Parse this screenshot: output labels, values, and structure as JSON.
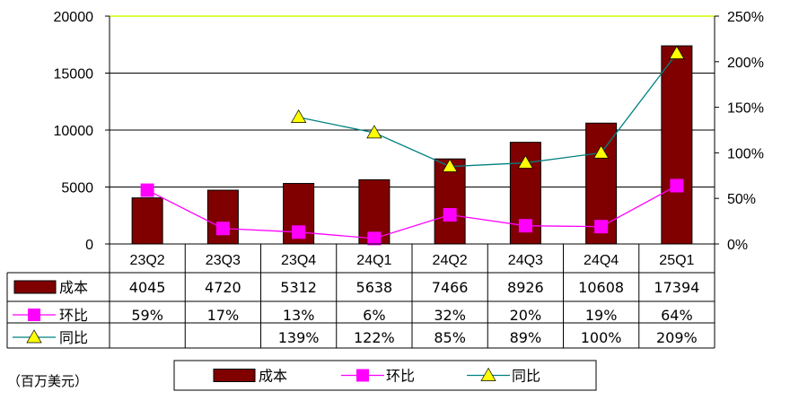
{
  "chart_data": {
    "type": "bar+line",
    "categories": [
      "23Q2",
      "23Q3",
      "23Q4",
      "24Q1",
      "24Q2",
      "24Q3",
      "24Q4",
      "25Q1"
    ],
    "series": [
      {
        "name": "成本",
        "type": "bar",
        "axis": "left",
        "color": "#800000",
        "values": [
          4045,
          4720,
          5312,
          5638,
          7466,
          8926,
          10608,
          17394
        ],
        "labels": [
          "4045",
          "4720",
          "5312",
          "5638",
          "7466",
          "8926",
          "10608",
          "17394"
        ]
      },
      {
        "name": "环比",
        "type": "line",
        "axis": "right",
        "color": "#ff00ff",
        "marker": "square",
        "values": [
          59,
          17,
          13,
          6,
          32,
          20,
          19,
          64
        ],
        "labels": [
          "59%",
          "17%",
          "13%",
          "6%",
          "32%",
          "20%",
          "19%",
          "64%"
        ]
      },
      {
        "name": "同比",
        "type": "line",
        "axis": "right",
        "color": "#008080",
        "marker": "triangle",
        "marker_color": "#ffff00",
        "values": [
          null,
          null,
          139,
          122,
          85,
          89,
          100,
          209
        ],
        "labels": [
          "",
          "",
          "139%",
          "122%",
          "85%",
          "89%",
          "100%",
          "209%"
        ]
      }
    ],
    "y_left": {
      "range": [
        0,
        20000
      ],
      "ticks": [
        "0",
        "5000",
        "10000",
        "15000",
        "20000"
      ]
    },
    "y_right": {
      "range": [
        0,
        250
      ],
      "ticks": [
        "0%",
        "50%",
        "100%",
        "150%",
        "200%",
        "250%"
      ]
    },
    "grid": true,
    "top_line_color": "#ccff00",
    "legend": {
      "position": "bottom",
      "items": [
        "成本",
        "环比",
        "同比"
      ]
    },
    "data_table": true,
    "unit_note": "（百万美元）"
  }
}
